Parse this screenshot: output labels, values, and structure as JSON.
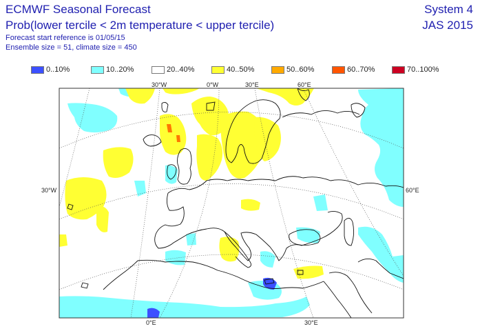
{
  "header": {
    "title": "ECMWF Seasonal Forecast",
    "subtitle": "Prob(lower tercile < 2m temperature < upper tercile)",
    "start_reference": "Forecast start reference is 01/05/15",
    "ensemble": "Ensemble size = 51, climate size = 450",
    "system": "System 4",
    "period": "JAS 2015"
  },
  "legend": [
    {
      "label": "0..10%",
      "color": "#3c50ff"
    },
    {
      "label": "10..20%",
      "color": "#80ffff"
    },
    {
      "label": "20..40%",
      "color": "#ffffff"
    },
    {
      "label": "40..50%",
      "color": "#ffff33"
    },
    {
      "label": "50..60%",
      "color": "#ffaa00"
    },
    {
      "label": "60..70%",
      "color": "#ff5500"
    },
    {
      "label": "70..100%",
      "color": "#cc0022"
    }
  ],
  "grid_labels": {
    "top": [
      "30°W",
      "0°W",
      "30°E",
      "60°E"
    ],
    "left": "30°W",
    "right": "60°E",
    "bottom": [
      "0°E",
      "30°E"
    ]
  },
  "colors": {
    "yellow": "#ffff33",
    "cyan": "#80ffff",
    "blue": "#3c50ff",
    "orange": "#ff7700",
    "text": "#2020b0"
  }
}
